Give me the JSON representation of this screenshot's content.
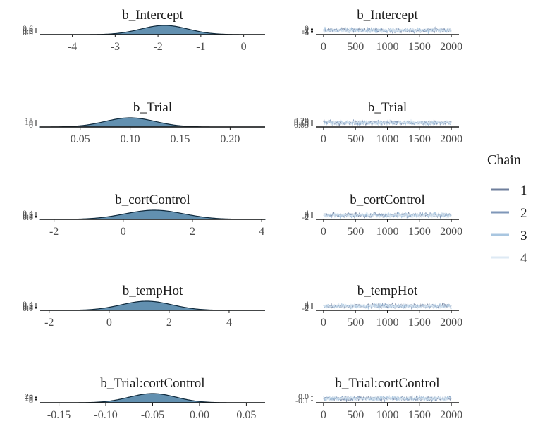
{
  "legend": {
    "title": "Chain",
    "entries": [
      {
        "label": "1",
        "color": "#6f7f9c"
      },
      {
        "label": "2",
        "color": "#7f97b8"
      },
      {
        "label": "3",
        "color": "#a9c6e0"
      },
      {
        "label": "4",
        "color": "#deeaf4"
      }
    ]
  },
  "colors": {
    "density_fill": "#2e6b95",
    "density_line": "#0f2a3d",
    "axis": "#1a1a1a"
  },
  "chart_data": [
    {
      "type": "area",
      "panel": "density",
      "title": "b_Intercept",
      "xlim": [
        -4.75,
        0.5
      ],
      "xticks": [
        -4,
        -3,
        -2,
        -1,
        0
      ],
      "xtick_labels": [
        "-4",
        "-3",
        "-2",
        "-1",
        "0"
      ],
      "yticks": [
        "0.0",
        "0.2",
        "0.4",
        "0.6"
      ],
      "density": {
        "mean": -1.85,
        "sd": 0.55,
        "peak": 0.62
      }
    },
    {
      "type": "line",
      "panel": "trace",
      "title": "b_Intercept",
      "xlim": [
        -120,
        2120
      ],
      "xticks": [
        0,
        500,
        1000,
        1500,
        2000
      ],
      "xtick_labels": [
        "0",
        "500",
        "1000",
        "1500",
        "2000"
      ],
      "yticks": [
        "-4",
        "-3",
        "-2",
        "-1",
        "0"
      ],
      "trace": {
        "iterations": 2000,
        "center": -1.85,
        "spread": 0.55
      }
    },
    {
      "type": "area",
      "panel": "density",
      "title": "b_Trial",
      "xlim": [
        0.01,
        0.235
      ],
      "xticks": [
        0.05,
        0.1,
        0.15,
        0.2
      ],
      "xtick_labels": [
        "0.05",
        "0.10",
        "0.15",
        "0.20"
      ],
      "yticks": [
        "0",
        "5",
        "10",
        "15"
      ],
      "density": {
        "mean": 0.1,
        "sd": 0.025,
        "peak": 16
      }
    },
    {
      "type": "line",
      "panel": "trace",
      "title": "b_Trial",
      "xlim": [
        -120,
        2120
      ],
      "xticks": [
        0,
        500,
        1000,
        1500,
        2000
      ],
      "xtick_labels": [
        "0",
        "500",
        "1000",
        "1500",
        "2000"
      ],
      "yticks": [
        "0.05",
        "0.10",
        "0.15",
        "0.20"
      ],
      "trace": {
        "iterations": 2000,
        "center": 0.1,
        "spread": 0.025
      }
    },
    {
      "type": "area",
      "panel": "density",
      "title": "b_cortControl",
      "xlim": [
        -2.4,
        4.1
      ],
      "xticks": [
        -2,
        0,
        2,
        4
      ],
      "xtick_labels": [
        "-2",
        "0",
        "2",
        "4"
      ],
      "yticks": [
        "0.0",
        "0.1",
        "0.2",
        "0.3",
        "0.4"
      ],
      "density": {
        "mean": 0.9,
        "sd": 0.85,
        "peak": 0.42
      }
    },
    {
      "type": "line",
      "panel": "trace",
      "title": "b_cortControl",
      "xlim": [
        -120,
        2120
      ],
      "xticks": [
        0,
        500,
        1000,
        1500,
        2000
      ],
      "xtick_labels": [
        "0",
        "500",
        "1000",
        "1500",
        "2000"
      ],
      "yticks": [
        "-2",
        "0",
        "2",
        "4"
      ],
      "trace": {
        "iterations": 2000,
        "center": 0.9,
        "spread": 0.85
      }
    },
    {
      "type": "area",
      "panel": "density",
      "title": "b_tempHot",
      "xlim": [
        -2.3,
        5.2
      ],
      "xticks": [
        -2,
        0,
        2,
        4
      ],
      "xtick_labels": [
        "-2",
        "0",
        "2",
        "4"
      ],
      "yticks": [
        "0.0",
        "0.1",
        "0.2",
        "0.3",
        "0.4"
      ],
      "density": {
        "mean": 1.25,
        "sd": 0.85,
        "peak": 0.42
      }
    },
    {
      "type": "line",
      "panel": "trace",
      "title": "b_tempHot",
      "xlim": [
        -120,
        2120
      ],
      "xticks": [
        0,
        500,
        1000,
        1500,
        2000
      ],
      "xtick_labels": [
        "0",
        "500",
        "1000",
        "1500",
        "2000"
      ],
      "yticks": [
        "-2",
        "0",
        "2",
        "4"
      ],
      "trace": {
        "iterations": 2000,
        "center": 1.25,
        "spread": 0.85
      }
    },
    {
      "type": "area",
      "panel": "density",
      "title": "b_Trial:cortControl",
      "xlim": [
        -0.17,
        0.07
      ],
      "xticks": [
        -0.15,
        -0.1,
        -0.05,
        0.0,
        0.05
      ],
      "xtick_labels": [
        "-0.15",
        "-0.10",
        "-0.05",
        "0.00",
        "0.05"
      ],
      "yticks": [
        "0",
        "5",
        "10",
        "15",
        "20"
      ],
      "density": {
        "mean": -0.05,
        "sd": 0.025,
        "peak": 16
      }
    },
    {
      "type": "line",
      "panel": "trace",
      "title": "b_Trial:cortControl",
      "xlim": [
        -120,
        2120
      ],
      "xticks": [
        0,
        500,
        1000,
        1500,
        2000
      ],
      "xtick_labels": [
        "0",
        "500",
        "1000",
        "1500",
        "2000"
      ],
      "yticks": [
        "-0.1",
        "0.0"
      ],
      "trace": {
        "iterations": 2000,
        "center": -0.05,
        "spread": 0.025
      }
    }
  ]
}
